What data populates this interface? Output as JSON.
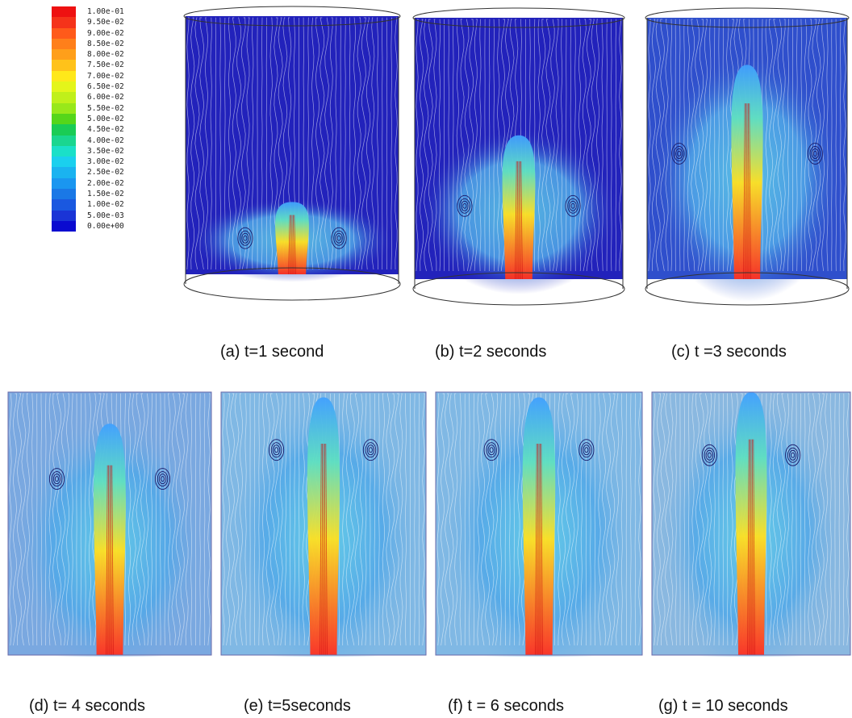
{
  "colorbar": {
    "labels": [
      "1.00e-01",
      "9.50e-02",
      "9.00e-02",
      "8.50e-02",
      "8.00e-02",
      "7.50e-02",
      "7.00e-02",
      "6.50e-02",
      "6.00e-02",
      "5.50e-02",
      "5.00e-02",
      "4.50e-02",
      "4.00e-02",
      "3.50e-02",
      "3.00e-02",
      "2.50e-02",
      "2.00e-02",
      "1.50e-02",
      "1.00e-02",
      "5.00e-03",
      "0.00e+00"
    ],
    "colors": [
      "#ee1111",
      "#f5331a",
      "#ff5a1a",
      "#ff7f1a",
      "#ff9f1a",
      "#ffc21a",
      "#ffe81a",
      "#e4f51a",
      "#c0f01a",
      "#98e81a",
      "#55d61a",
      "#1acc55",
      "#1ad68f",
      "#1ae0c8",
      "#1ad0ee",
      "#1ab3f0",
      "#1a96f0",
      "#1a78e6",
      "#1a58e0",
      "#1a34d6",
      "#0a0ad0"
    ]
  },
  "panels": [
    {
      "id": "a",
      "caption": "(a) t=1 second",
      "style": "cylinder",
      "plume": 0.28,
      "vortex_y": 0.86,
      "vortex_dx": 0.22,
      "bg": "#2222bb"
    },
    {
      "id": "b",
      "caption": "(b) t=2 seconds",
      "style": "cylinder",
      "plume": 0.55,
      "vortex_y": 0.72,
      "vortex_dx": 0.26,
      "bg": "#2222bb"
    },
    {
      "id": "c",
      "caption": "(c) t =3 seconds",
      "style": "cylinder",
      "plume": 0.82,
      "vortex_y": 0.52,
      "vortex_dx": 0.34,
      "bg": "#2f4fcc"
    },
    {
      "id": "d",
      "caption": "(d) t= 4 seconds",
      "style": "box",
      "plume": 0.88,
      "vortex_y": 0.33,
      "vortex_dx": 0.26,
      "bg": "#7aa8e0"
    },
    {
      "id": "e",
      "caption": "(e) t=5seconds",
      "style": "box",
      "plume": 0.98,
      "vortex_y": 0.22,
      "vortex_dx": 0.23,
      "bg": "#80b8e4"
    },
    {
      "id": "f",
      "caption": "(f) t = 6 seconds",
      "style": "box",
      "plume": 0.98,
      "vortex_y": 0.22,
      "vortex_dx": 0.23,
      "bg": "#80b8e4"
    },
    {
      "id": "g",
      "caption": "(g) t = 10 seconds",
      "style": "box",
      "plume": 1.0,
      "vortex_y": 0.24,
      "vortex_dx": 0.21,
      "bg": "#8ab8e0"
    }
  ]
}
